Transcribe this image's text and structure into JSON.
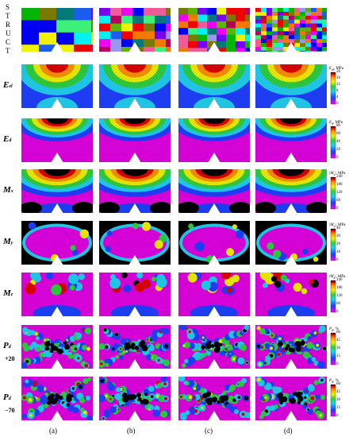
{
  "struct_letters": [
    "S",
    "T",
    "R",
    "U",
    "C",
    "T"
  ],
  "rows": [
    {
      "key": "struct",
      "label": "",
      "sub": "",
      "extra": ""
    },
    {
      "key": "esl",
      "label": "E",
      "sub": "el",
      "extra": ""
    },
    {
      "key": "ed",
      "label": "E",
      "sub": "d",
      "extra": ""
    },
    {
      "key": "mx",
      "label": "M",
      "sub": "x",
      "extra": ""
    },
    {
      "key": "my",
      "label": "M",
      "sub": "y",
      "extra": ""
    },
    {
      "key": "mz",
      "label": "M",
      "sub": "z",
      "extra": ""
    },
    {
      "key": "pd20",
      "label": "P",
      "sub": "d",
      "extra": "+20"
    },
    {
      "key": "pd70",
      "label": "P",
      "sub": "d",
      "extra": "−70"
    }
  ],
  "columns": [
    "(a)",
    "(b)",
    "(c)",
    "(d)"
  ],
  "colorbars": [
    {
      "row": 1,
      "title": "E_el MPa",
      "title_main": "E",
      "title_sub": "el",
      "title_unit": ", MPa",
      "ticks": [
        "20",
        "16",
        "12",
        "8",
        "4",
        "0"
      ]
    },
    {
      "row": 2,
      "title": "E_d MPa",
      "title_main": "E",
      "title_sub": "d",
      "title_unit": ", MPa",
      "ticks": [
        "80",
        "60",
        "40",
        "20",
        "0"
      ]
    },
    {
      "row": 3,
      "title": "|M_x| MPa",
      "title_main": "|M",
      "title_sub": "x",
      "title_unit": "|, MPa",
      "ticks": [
        "240",
        "180",
        "120",
        "60",
        "0"
      ]
    },
    {
      "row": 4,
      "title": "|M_y| MPa",
      "title_main": "|M",
      "title_sub": "y",
      "title_unit": "|, MPa",
      "ticks": [
        "40",
        "30",
        "20",
        "10",
        "0"
      ]
    },
    {
      "row": 5,
      "title": "|M_z| MPa",
      "title_main": "|M",
      "title_sub": "z",
      "title_unit": "|, MPa",
      "ticks": [
        "240",
        "180",
        "120",
        "60",
        "0"
      ]
    },
    {
      "row": 6,
      "title": "P_d %",
      "title_main": "P",
      "title_sub": "d",
      "title_unit": ", %",
      "ticks": [
        "60",
        "45",
        "30",
        "15",
        "0"
      ]
    },
    {
      "row": 7,
      "title": "P_d %",
      "title_main": "P",
      "title_sub": "d",
      "title_unit": ", %",
      "ticks": [
        "60",
        "45",
        "30",
        "15",
        "0"
      ]
    }
  ],
  "colors": {
    "magenta": "#e000e0",
    "blue": "#2040ff",
    "cyan": "#20d0f0",
    "green": "#30d040",
    "yellow": "#f0f000",
    "orange": "#ff9000",
    "red": "#e00000",
    "black": "#000000"
  }
}
